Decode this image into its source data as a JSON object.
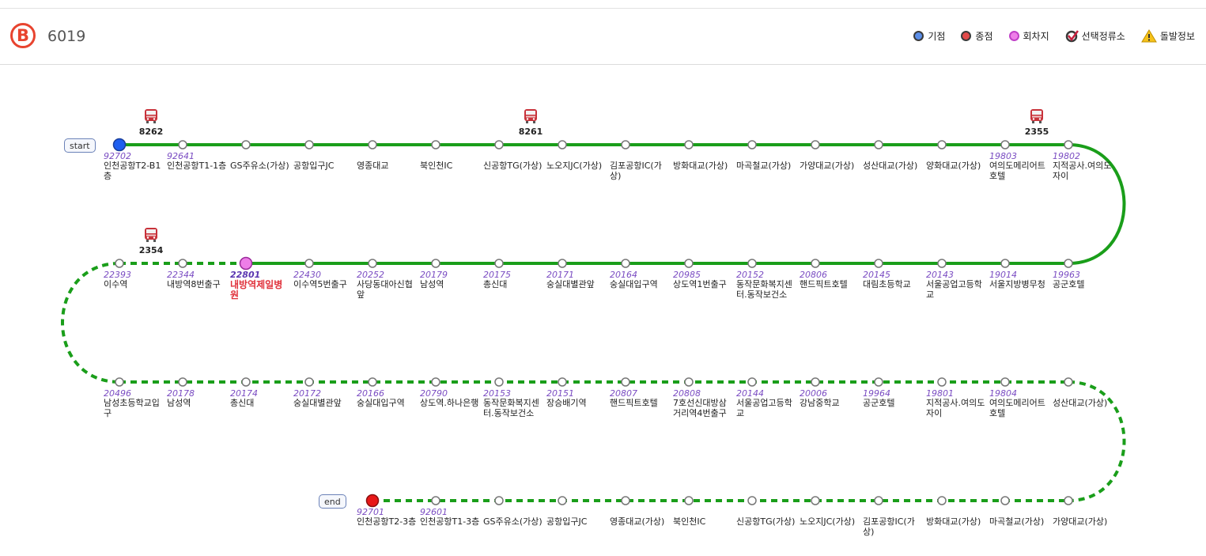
{
  "header": {
    "logo_letter": "B",
    "route_number": "6019"
  },
  "legend": [
    {
      "icon": "start-point-icon",
      "label": "기점",
      "color": "#5b8ee8"
    },
    {
      "icon": "end-point-icon",
      "label": "종점",
      "color": "#e24a4a"
    },
    {
      "icon": "turnaround-icon",
      "label": "회차지",
      "color": "#ee7ee8"
    },
    {
      "icon": "selected-stop-icon",
      "label": "선택정류소",
      "color": "#c81e3c"
    },
    {
      "icon": "alert-icon",
      "label": "돌발정보",
      "color": "#f0b400"
    }
  ],
  "colors": {
    "route_line": "#1a9e1a",
    "start": "#1e5ff0",
    "end": "#e81818",
    "turnaround": "#ee7ee8"
  },
  "tags": {
    "start": "start",
    "end": "end"
  },
  "rows": [
    {
      "style": "solid",
      "stations": [
        {
          "id": "92702",
          "name": "인천공항T2-B1층",
          "marker": "start"
        },
        {
          "id": "92641",
          "name": "인천공항T1-1층"
        },
        {
          "id": "",
          "name": "GS주유소(가상)"
        },
        {
          "id": "",
          "name": "공항입구JC"
        },
        {
          "id": "",
          "name": "영종대교"
        },
        {
          "id": "",
          "name": "북인천IC"
        },
        {
          "id": "",
          "name": "신공항TG(가상)"
        },
        {
          "id": "",
          "name": "노오지JC(가상)"
        },
        {
          "id": "",
          "name": "김포공항IC(가상)"
        },
        {
          "id": "",
          "name": "방화대교(가상)"
        },
        {
          "id": "",
          "name": "마곡철교(가상)"
        },
        {
          "id": "",
          "name": "가양대교(가상)"
        },
        {
          "id": "",
          "name": "성산대교(가상)"
        },
        {
          "id": "",
          "name": "양화대교(가상)"
        },
        {
          "id": "19803",
          "name": "여의도메리어트호텔"
        },
        {
          "id": "19802",
          "name": "지적공사.여의도자이"
        }
      ]
    },
    {
      "style": "mixed",
      "stations": [
        {
          "id": "22393",
          "name": "이수역"
        },
        {
          "id": "22344",
          "name": "내방역8번출구"
        },
        {
          "id": "22801",
          "name": "내방역제일병원",
          "marker": "turnaround",
          "selected": true
        },
        {
          "id": "22430",
          "name": "이수역5번출구"
        },
        {
          "id": "20252",
          "name": "사당동대아신협앞"
        },
        {
          "id": "20179",
          "name": "남성역"
        },
        {
          "id": "20175",
          "name": "총신대"
        },
        {
          "id": "20171",
          "name": "숭실대별관앞"
        },
        {
          "id": "20164",
          "name": "숭실대입구역"
        },
        {
          "id": "20985",
          "name": "상도역1번출구"
        },
        {
          "id": "20152",
          "name": "동작문화복지센터.동작보건소"
        },
        {
          "id": "20806",
          "name": "핸드픽트호텔"
        },
        {
          "id": "20145",
          "name": "대림초등학교"
        },
        {
          "id": "20143",
          "name": "서울공업고등학교"
        },
        {
          "id": "19014",
          "name": "서울지방병무청"
        },
        {
          "id": "19963",
          "name": "공군호텔"
        }
      ]
    },
    {
      "style": "dashed",
      "stations": [
        {
          "id": "20496",
          "name": "남성초등학교입구"
        },
        {
          "id": "20178",
          "name": "남성역"
        },
        {
          "id": "20174",
          "name": "총신대"
        },
        {
          "id": "20172",
          "name": "숭실대별관앞"
        },
        {
          "id": "20166",
          "name": "숭실대입구역"
        },
        {
          "id": "20790",
          "name": "상도역.하나은행"
        },
        {
          "id": "20153",
          "name": "동작문화복지센터.동작보건소"
        },
        {
          "id": "20151",
          "name": "장승배기역"
        },
        {
          "id": "20807",
          "name": "핸드픽트호텔"
        },
        {
          "id": "20808",
          "name": "7호선신대방삼거리역4번출구"
        },
        {
          "id": "20144",
          "name": "서울공업고등학교"
        },
        {
          "id": "20006",
          "name": "강남중학교"
        },
        {
          "id": "19964",
          "name": "공군호텔"
        },
        {
          "id": "19801",
          "name": "지적공사.여의도자이"
        },
        {
          "id": "19804",
          "name": "여의도메리어트호텔"
        },
        {
          "id": "",
          "name": "성산대교(가상)"
        }
      ]
    },
    {
      "style": "dashed",
      "stations": [
        {
          "id": "92701",
          "name": "인천공항T2-3층",
          "marker": "end"
        },
        {
          "id": "92601",
          "name": "인천공항T1-3층"
        },
        {
          "id": "",
          "name": "GS주유소(가상)"
        },
        {
          "id": "",
          "name": "공항입구JC"
        },
        {
          "id": "",
          "name": "영종대교(가상)"
        },
        {
          "id": "",
          "name": "북인천IC"
        },
        {
          "id": "",
          "name": "신공항TG(가상)"
        },
        {
          "id": "",
          "name": "노오지JC(가상)"
        },
        {
          "id": "",
          "name": "김포공항IC(가상)"
        },
        {
          "id": "",
          "name": "방화대교(가상)"
        },
        {
          "id": "",
          "name": "마곡철교(가상)"
        },
        {
          "id": "",
          "name": "가양대교(가상)"
        }
      ]
    }
  ],
  "buses": [
    {
      "number": "8262",
      "row": 0,
      "index": 0
    },
    {
      "number": "8261",
      "row": 0,
      "index": 6
    },
    {
      "number": "2355",
      "row": 0,
      "index": 14
    },
    {
      "number": "2354",
      "row": 1,
      "index": 0
    }
  ]
}
